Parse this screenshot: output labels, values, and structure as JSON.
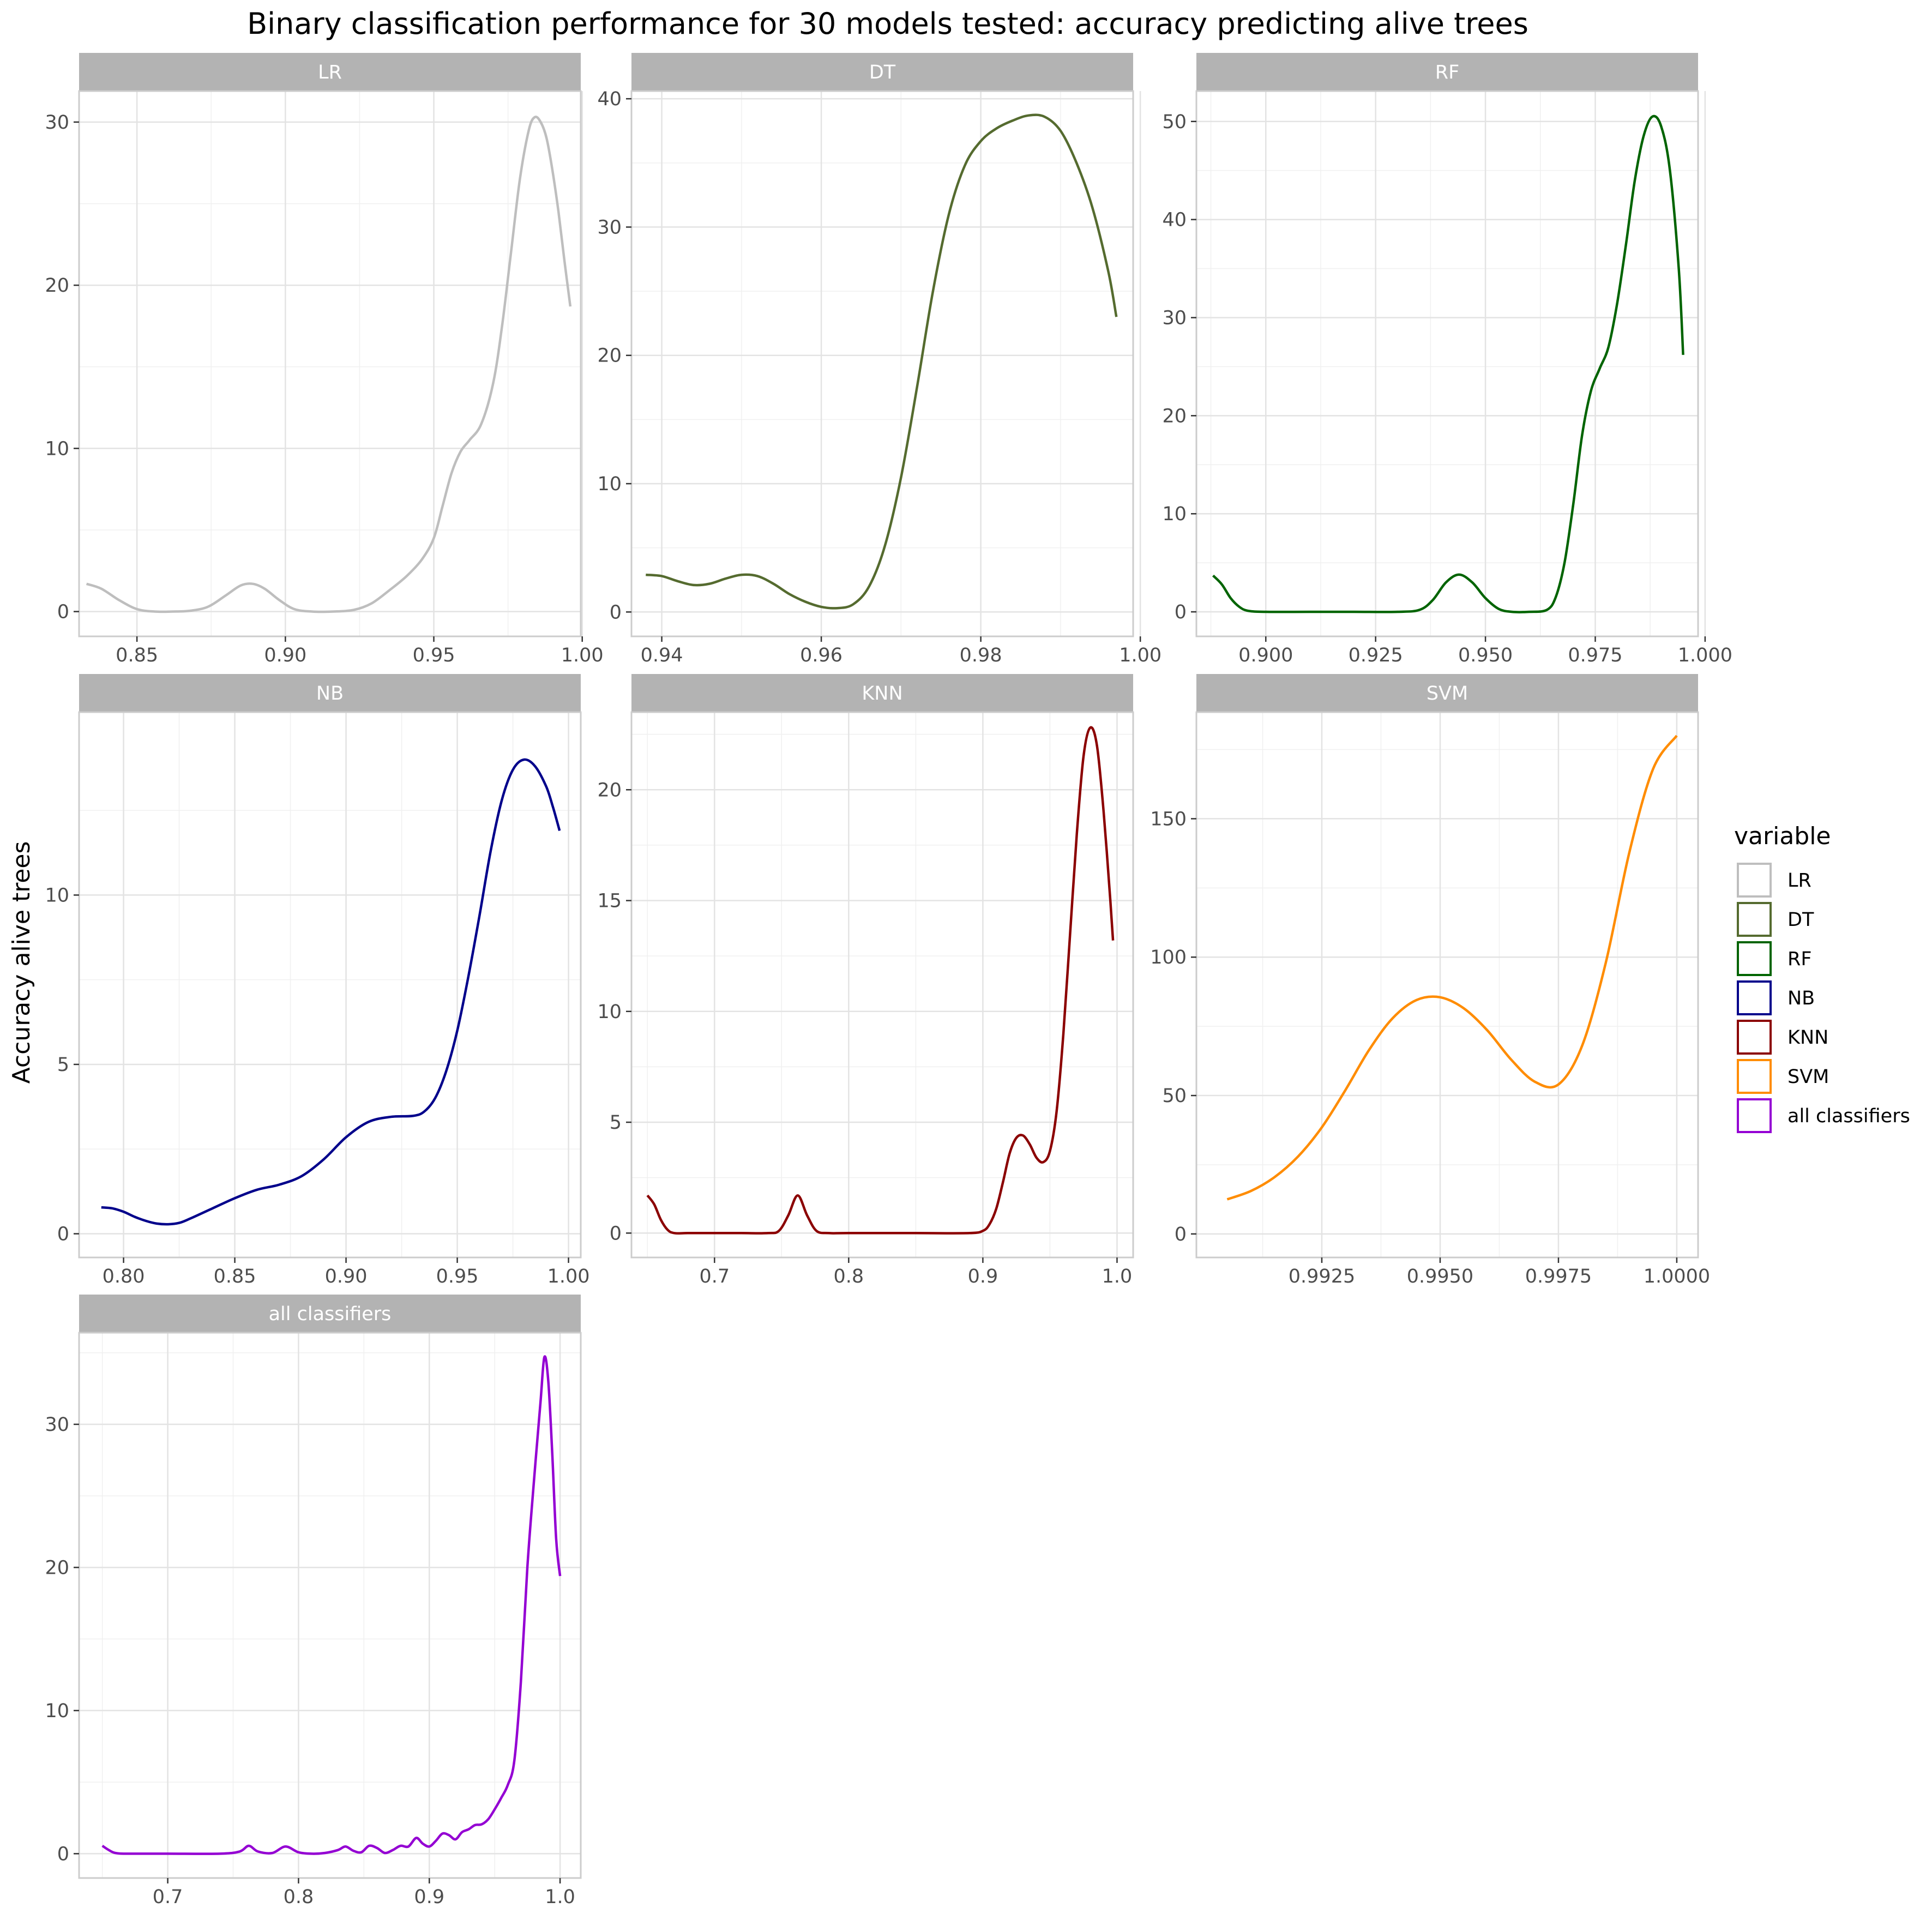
{
  "chart_data": {
    "type": "line",
    "title": "Binary classification performance for 30 models tested: accuracy predicting alive trees",
    "ylabel": "Accuracy alive trees",
    "xlabel": "",
    "legend": {
      "title": "variable",
      "placement": "right"
    },
    "grid": true,
    "facets": [
      {
        "name": "LR",
        "color": "#bebebe",
        "xlim": [
          0.8305,
          0.9995
        ],
        "ylim": [
          -1.52,
          31.9
        ],
        "xticks": [
          0.85,
          0.9,
          0.95,
          1.0
        ],
        "xtick_labels": [
          "0.85",
          "0.90",
          "0.95",
          "1.00"
        ],
        "yticks": [
          0,
          10,
          20,
          30
        ],
        "ytick_labels": [
          "0",
          "10",
          "20",
          "30"
        ],
        "x": [
          0.833,
          0.838,
          0.844,
          0.85,
          0.856,
          0.862,
          0.868,
          0.874,
          0.88,
          0.885,
          0.889,
          0.893,
          0.898,
          0.903,
          0.909,
          0.916,
          0.923,
          0.929,
          0.935,
          0.941,
          0.946,
          0.95,
          0.953,
          0.956,
          0.959,
          0.962,
          0.966,
          0.97,
          0.973,
          0.976,
          0.979,
          0.982,
          0.984,
          0.986,
          0.988,
          0.99,
          0.992,
          0.994,
          0.996
        ],
        "y": [
          1.7,
          1.4,
          0.7,
          0.15,
          0.0,
          0.0,
          0.05,
          0.3,
          1.0,
          1.6,
          1.7,
          1.4,
          0.7,
          0.15,
          0.0,
          0.0,
          0.1,
          0.5,
          1.3,
          2.2,
          3.2,
          4.5,
          6.5,
          8.5,
          9.8,
          10.5,
          11.5,
          14.0,
          17.5,
          22.0,
          26.5,
          29.5,
          30.3,
          30.0,
          29.0,
          27.0,
          24.5,
          21.5,
          18.7
        ]
      },
      {
        "name": "DT",
        "color": "#556b2f",
        "xlim": [
          0.9362,
          0.9991
        ],
        "ylim": [
          -1.9,
          40.6
        ],
        "xticks": [
          0.94,
          0.96,
          0.98,
          1.0
        ],
        "xtick_labels": [
          "0.94",
          "0.96",
          "0.98",
          "1.00"
        ],
        "yticks": [
          0,
          10,
          20,
          30,
          40
        ],
        "ytick_labels": [
          "0",
          "10",
          "20",
          "30",
          "40"
        ],
        "x": [
          0.938,
          0.94,
          0.942,
          0.944,
          0.946,
          0.948,
          0.95,
          0.952,
          0.954,
          0.956,
          0.958,
          0.96,
          0.962,
          0.964,
          0.966,
          0.968,
          0.97,
          0.972,
          0.974,
          0.976,
          0.978,
          0.98,
          0.982,
          0.984,
          0.986,
          0.988,
          0.99,
          0.992,
          0.994,
          0.996,
          0.997
        ],
        "y": [
          2.9,
          2.8,
          2.4,
          2.1,
          2.2,
          2.6,
          2.9,
          2.8,
          2.2,
          1.4,
          0.8,
          0.4,
          0.3,
          0.6,
          2.0,
          5.2,
          10.5,
          17.5,
          25.0,
          31.0,
          34.8,
          36.7,
          37.7,
          38.3,
          38.7,
          38.6,
          37.5,
          35.0,
          31.5,
          26.5,
          23.0
        ]
      },
      {
        "name": "RF",
        "color": "#006400",
        "xlim": [
          0.8842,
          0.9984
        ],
        "ylim": [
          -2.5,
          53.1
        ],
        "xticks": [
          0.9,
          0.925,
          0.95,
          0.975,
          1.0
        ],
        "xtick_labels": [
          "0.900",
          "0.925",
          "0.950",
          "0.975",
          "1.000"
        ],
        "yticks": [
          0,
          10,
          20,
          30,
          40,
          50
        ],
        "ytick_labels": [
          "0",
          "10",
          "20",
          "30",
          "40",
          "50"
        ],
        "x": [
          0.888,
          0.89,
          0.892,
          0.894,
          0.896,
          0.9,
          0.91,
          0.92,
          0.93,
          0.935,
          0.938,
          0.941,
          0.944,
          0.947,
          0.95,
          0.953,
          0.956,
          0.96,
          0.964,
          0.966,
          0.968,
          0.97,
          0.972,
          0.974,
          0.976,
          0.978,
          0.98,
          0.982,
          0.984,
          0.986,
          0.988,
          0.99,
          0.992,
          0.994,
          0.995
        ],
        "y": [
          3.7,
          2.8,
          1.4,
          0.5,
          0.1,
          0.0,
          0.0,
          0.0,
          0.0,
          0.2,
          1.2,
          3.0,
          3.8,
          3.0,
          1.4,
          0.3,
          0.0,
          0.0,
          0.2,
          1.5,
          5.0,
          11.0,
          18.0,
          22.5,
          24.8,
          27.0,
          31.5,
          37.5,
          44.0,
          48.5,
          50.5,
          49.5,
          45.0,
          35.0,
          26.2
        ]
      },
      {
        "name": "NB",
        "color": "#00008b",
        "xlim": [
          0.78,
          1.0055
        ],
        "ylim": [
          -0.7,
          15.4
        ],
        "xticks": [
          0.8,
          0.85,
          0.9,
          0.95,
          1.0
        ],
        "xtick_labels": [
          "0.80",
          "0.85",
          "0.90",
          "0.95",
          "1.00"
        ],
        "yticks": [
          0,
          5,
          10
        ],
        "ytick_labels": [
          "0",
          "5",
          "10"
        ],
        "x": [
          0.79,
          0.795,
          0.8,
          0.805,
          0.81,
          0.815,
          0.82,
          0.825,
          0.83,
          0.84,
          0.85,
          0.86,
          0.87,
          0.88,
          0.89,
          0.9,
          0.91,
          0.92,
          0.93,
          0.935,
          0.94,
          0.945,
          0.95,
          0.955,
          0.96,
          0.965,
          0.97,
          0.975,
          0.98,
          0.985,
          0.99,
          0.993,
          0.996
        ],
        "y": [
          0.78,
          0.75,
          0.65,
          0.5,
          0.38,
          0.3,
          0.28,
          0.32,
          0.45,
          0.75,
          1.05,
          1.3,
          1.45,
          1.7,
          2.2,
          2.85,
          3.3,
          3.45,
          3.48,
          3.6,
          4.0,
          4.8,
          6.0,
          7.6,
          9.4,
          11.3,
          12.8,
          13.7,
          14.0,
          13.8,
          13.2,
          12.6,
          11.9
        ]
      },
      {
        "name": "KNN",
        "color": "#8b0000",
        "xlim": [
          0.6381,
          1.012
        ],
        "ylim": [
          -1.1,
          23.5
        ],
        "xticks": [
          0.7,
          0.8,
          0.9,
          1.0
        ],
        "xtick_labels": [
          "0.7",
          "0.8",
          "0.9",
          "1.0"
        ],
        "yticks": [
          0,
          5,
          10,
          15,
          20
        ],
        "ytick_labels": [
          "0",
          "5",
          "10",
          "15",
          "20"
        ],
        "x": [
          0.65,
          0.655,
          0.66,
          0.665,
          0.67,
          0.68,
          0.7,
          0.72,
          0.74,
          0.748,
          0.755,
          0.762,
          0.769,
          0.776,
          0.785,
          0.8,
          0.85,
          0.89,
          0.9,
          0.905,
          0.91,
          0.915,
          0.92,
          0.925,
          0.93,
          0.935,
          0.94,
          0.945,
          0.95,
          0.955,
          0.96,
          0.965,
          0.97,
          0.975,
          0.98,
          0.985,
          0.99,
          0.995,
          0.997
        ],
        "y": [
          1.7,
          1.3,
          0.6,
          0.15,
          0.0,
          0.0,
          0.0,
          0.0,
          0.0,
          0.1,
          0.8,
          1.7,
          0.8,
          0.1,
          0.0,
          0.0,
          0.0,
          0.0,
          0.1,
          0.4,
          1.1,
          2.3,
          3.6,
          4.3,
          4.4,
          4.0,
          3.4,
          3.2,
          3.7,
          5.5,
          9.0,
          13.5,
          18.0,
          21.5,
          22.8,
          22.0,
          19.0,
          15.0,
          13.2
        ]
      },
      {
        "name": "SVM",
        "color": "#ff8c00",
        "xlim": [
          0.98985,
          1.00045
        ],
        "ylim": [
          -8.5,
          188.5
        ],
        "xticks": [
          0.9925,
          0.995,
          0.9975,
          1.0
        ],
        "xtick_labels": [
          "0.9925",
          "0.9950",
          "0.9975",
          "1.0000"
        ],
        "yticks": [
          0,
          50,
          100,
          150
        ],
        "ytick_labels": [
          "0",
          "50",
          "100",
          "150"
        ],
        "x": [
          0.9905,
          0.991,
          0.9915,
          0.992,
          0.9925,
          0.993,
          0.9935,
          0.994,
          0.9945,
          0.995,
          0.9955,
          0.996,
          0.9965,
          0.997,
          0.9975,
          0.998,
          0.9985,
          0.999,
          0.9995,
          1.0
        ],
        "y": [
          12.5,
          15.5,
          20.5,
          28.0,
          38.5,
          52.0,
          66.5,
          78.0,
          84.5,
          85.5,
          81.5,
          73.5,
          63.0,
          55.0,
          54.0,
          68.0,
          98.0,
          138.0,
          168.0,
          180.0
        ]
      },
      {
        "name": "all classifiers",
        "color": "#9400d3",
        "xlim": [
          0.6322,
          1.0158
        ],
        "ylim": [
          -1.7,
          36.4
        ],
        "xticks": [
          0.7,
          0.8,
          0.9,
          1.0
        ],
        "xtick_labels": [
          "0.7",
          "0.8",
          "0.9",
          "1.0"
        ],
        "yticks": [
          0,
          10,
          20,
          30
        ],
        "ytick_labels": [
          "0",
          "10",
          "20",
          "30"
        ],
        "x": [
          0.65,
          0.655,
          0.66,
          0.67,
          0.7,
          0.74,
          0.755,
          0.762,
          0.769,
          0.78,
          0.79,
          0.8,
          0.81,
          0.82,
          0.83,
          0.836,
          0.842,
          0.848,
          0.854,
          0.86,
          0.866,
          0.872,
          0.878,
          0.884,
          0.89,
          0.895,
          0.9,
          0.905,
          0.91,
          0.915,
          0.92,
          0.925,
          0.93,
          0.935,
          0.94,
          0.945,
          0.95,
          0.955,
          0.96,
          0.965,
          0.97,
          0.975,
          0.98,
          0.985,
          0.988,
          0.991,
          0.994,
          0.997,
          1.0
        ],
        "y": [
          0.55,
          0.25,
          0.05,
          0.0,
          0.0,
          0.0,
          0.15,
          0.55,
          0.15,
          0.05,
          0.5,
          0.1,
          0.0,
          0.05,
          0.25,
          0.5,
          0.2,
          0.1,
          0.55,
          0.4,
          0.05,
          0.25,
          0.55,
          0.5,
          1.1,
          0.7,
          0.5,
          0.9,
          1.4,
          1.3,
          1.0,
          1.5,
          1.7,
          2.0,
          2.05,
          2.4,
          3.1,
          3.9,
          4.8,
          6.5,
          12.0,
          20.0,
          26.0,
          31.5,
          34.7,
          33.0,
          28.0,
          22.0,
          19.4
        ]
      }
    ]
  }
}
